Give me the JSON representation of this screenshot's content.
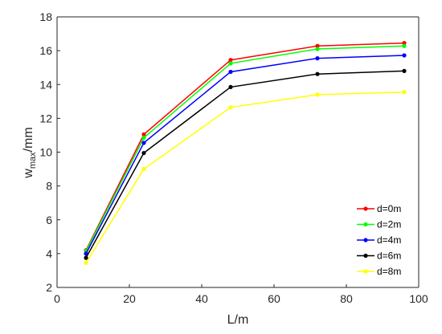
{
  "chart_data": {
    "type": "line",
    "x": [
      8,
      24,
      48,
      72,
      96
    ],
    "xlabel": "L/m",
    "ylabel_main": "w",
    "ylabel_sub": "max",
    "ylabel_unit": "/mm",
    "xlim": [
      0,
      100
    ],
    "ylim": [
      2,
      18
    ],
    "xticks": [
      "0",
      "20",
      "40",
      "60",
      "80",
      "100"
    ],
    "yticks": [
      "2",
      "4",
      "6",
      "8",
      "10",
      "12",
      "14",
      "16",
      "18"
    ],
    "grid": false,
    "legend_position": "bottom-right",
    "series": [
      {
        "name": "d=0m",
        "color": "#ff0000",
        "values": [
          4.2,
          11.05,
          15.45,
          16.28,
          16.45
        ]
      },
      {
        "name": "d=2m",
        "color": "#00ff00",
        "values": [
          4.15,
          10.85,
          15.25,
          16.1,
          16.28
        ]
      },
      {
        "name": "d=4m",
        "color": "#0000ff",
        "values": [
          4.0,
          10.55,
          14.75,
          15.55,
          15.72
        ]
      },
      {
        "name": "d=6m",
        "color": "#000000",
        "values": [
          3.75,
          9.95,
          13.85,
          14.62,
          14.8
        ]
      },
      {
        "name": "d=8m",
        "color": "#ffff00",
        "values": [
          3.45,
          9.0,
          12.65,
          13.4,
          13.55
        ]
      }
    ]
  }
}
